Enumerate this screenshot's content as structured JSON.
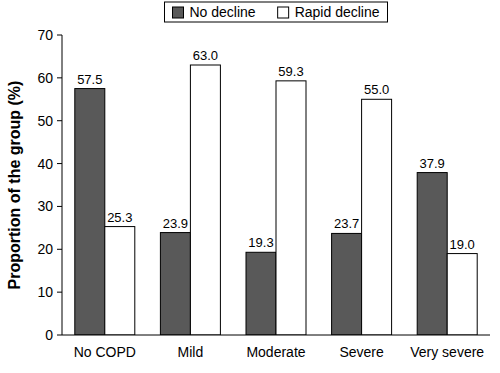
{
  "chart_data": {
    "type": "bar",
    "y_label": "Proportion of the group (%)",
    "categories": [
      "No COPD",
      "Mild",
      "Moderate",
      "Severe",
      "Very severe"
    ],
    "series": [
      {
        "name": "No decline",
        "color": "#595959",
        "values": [
          57.5,
          23.9,
          19.3,
          23.7,
          37.9
        ],
        "value_labels": [
          "57.5",
          "23.9",
          "19.3",
          "23.7",
          "37.9"
        ]
      },
      {
        "name": "Rapid decline",
        "color": "#ffffff",
        "values": [
          25.3,
          63.0,
          59.3,
          55.0,
          19.0
        ],
        "value_labels": [
          "25.3",
          "63.0",
          "59.3",
          "55.0",
          "19.0"
        ]
      }
    ],
    "ylim": [
      0,
      70
    ],
    "yticks": [
      0,
      10,
      20,
      30,
      40,
      50,
      60,
      70
    ],
    "grid": false,
    "legend": "top",
    "data_labels": true
  }
}
